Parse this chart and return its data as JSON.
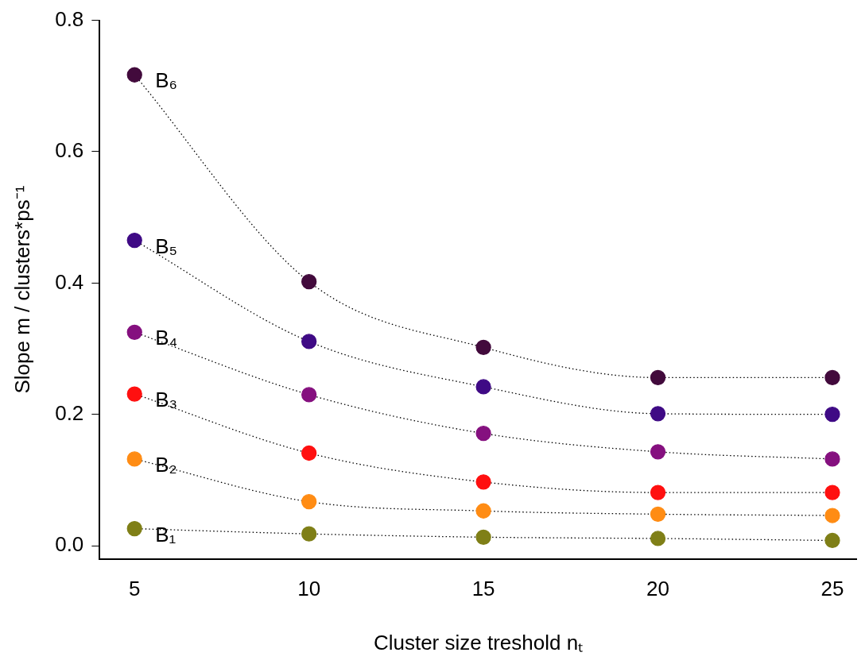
{
  "chart_data": {
    "type": "line",
    "xlabel": "Cluster size treshold nₜ",
    "ylabel": "Slope m / clusters*ps⁻¹",
    "x": [
      5,
      10,
      15,
      20,
      25
    ],
    "series": [
      {
        "name": "B₁",
        "color": "#7f7f17",
        "values": [
          0.026,
          0.018,
          0.013,
          0.011,
          0.008
        ]
      },
      {
        "name": "B₂",
        "color": "#ff8c14",
        "values": [
          0.132,
          0.067,
          0.053,
          0.048,
          0.046
        ]
      },
      {
        "name": "B₃",
        "color": "#ff1010",
        "values": [
          0.231,
          0.141,
          0.097,
          0.081,
          0.081
        ]
      },
      {
        "name": "B₄",
        "color": "#85107f",
        "values": [
          0.325,
          0.23,
          0.171,
          0.143,
          0.132
        ]
      },
      {
        "name": "B₅",
        "color": "#3f0a85",
        "values": [
          0.465,
          0.311,
          0.242,
          0.201,
          0.2
        ]
      },
      {
        "name": "B₆",
        "color": "#420a3c",
        "values": [
          0.717,
          0.402,
          0.302,
          0.256,
          0.256
        ]
      }
    ],
    "xlim": [
      4,
      25.7
    ],
    "xticks": [
      5,
      10,
      15,
      20,
      25
    ],
    "ylim": [
      -0.02,
      0.8
    ],
    "yticks": [
      {
        "value": 0,
        "label": "0.0"
      },
      0.2,
      0.4,
      0.6,
      0.8
    ],
    "grid": false,
    "legend": false,
    "marker": "circle",
    "line_style": "dotted"
  }
}
